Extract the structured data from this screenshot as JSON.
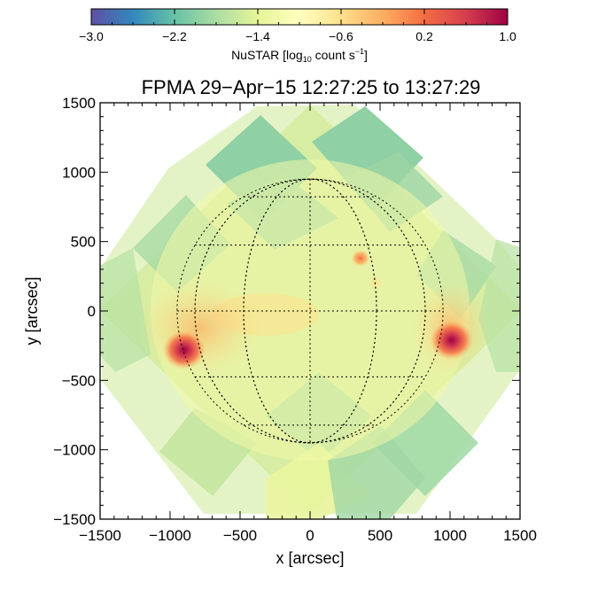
{
  "chart_data": {
    "type": "heatmap",
    "title": "FPMA 29−Apr−15 12:27:25 to 13:27:29",
    "xlabel": "x [arcsec]",
    "ylabel": "y [arcsec]",
    "xlim": [
      -1500,
      1500
    ],
    "ylim": [
      -1500,
      1500
    ],
    "x_ticks": [
      -1500,
      -1000,
      -500,
      0,
      500,
      1000,
      1500
    ],
    "y_ticks": [
      -1500,
      -1000,
      -500,
      0,
      500,
      1000,
      1500
    ],
    "x_tick_labels": [
      "−1500",
      "−1000",
      "−500",
      "0",
      "500",
      "1000",
      "1500"
    ],
    "y_tick_labels": [
      "−1500",
      "−1000",
      "−500",
      "0",
      "500",
      "1000",
      "1500"
    ],
    "colorbar": {
      "label_prefix": "NuSTAR [log",
      "label_sub": "10",
      "label_mid": " count s",
      "label_sup": "−1",
      "label_suffix": "]",
      "range": [
        -3.0,
        1.0
      ],
      "ticks": [
        -3.0,
        -2.2,
        -1.4,
        -0.6,
        0.2,
        1.0
      ],
      "tick_labels": [
        "−3.0",
        "−2.2",
        "−1.4",
        "−0.6",
        "0.2",
        "1.0"
      ],
      "colormap": [
        "#5e4fa2",
        "#3288bd",
        "#66c2a5",
        "#abdda4",
        "#e6f598",
        "#ffffbf",
        "#fee08b",
        "#fdae61",
        "#f46d43",
        "#d53e4f",
        "#9e0142"
      ]
    },
    "solar_disk": {
      "radius_arcsec": 950,
      "grid": "dotted heliographic grid"
    },
    "features": [
      {
        "name": "east-limb-bright-source",
        "x": -900,
        "y": -280,
        "peak_log_rate": 0.9
      },
      {
        "name": "west-limb-bright-source",
        "x": 1010,
        "y": -210,
        "peak_log_rate": 0.9
      },
      {
        "name": "disk-source-ne",
        "x": 360,
        "y": 380,
        "peak_log_rate": -0.3
      },
      {
        "name": "disk-source-small-se",
        "x": 470,
        "y": 200,
        "peak_log_rate": -0.8
      }
    ],
    "field_of_view": "mosaic of rotated square pointings covering approx. −1400 to 1500 arcsec"
  }
}
